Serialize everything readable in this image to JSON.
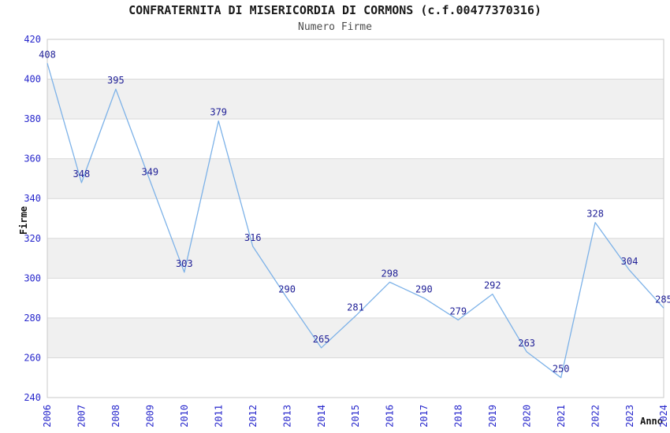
{
  "header": {
    "title": "CONFRATERNITA DI MISERICORDIA DI CORMONS (c.f.00477370316)",
    "subtitle": "Numero Firme"
  },
  "chart_data": {
    "type": "line",
    "title": "CONFRATERNITA DI MISERICORDIA DI CORMONS (c.f.00477370316)",
    "subtitle": "Numero Firme",
    "categories": [
      "2006",
      "2007",
      "2008",
      "2009",
      "2010",
      "2011",
      "2012",
      "2013",
      "2014",
      "2015",
      "2016",
      "2017",
      "2018",
      "2019",
      "2020",
      "2021",
      "2022",
      "2023",
      "2024"
    ],
    "values": [
      408,
      348,
      395,
      349,
      303,
      379,
      316,
      290,
      265,
      281,
      298,
      290,
      279,
      292,
      263,
      250,
      328,
      304,
      285
    ],
    "xlabel": "Anno",
    "ylabel": "Firme",
    "ylim": [
      240,
      420
    ],
    "y_tick_step": 20,
    "grid": true,
    "legend": "none",
    "band_pattern": "alternating-horizontal"
  },
  "colors": {
    "line": "#7db2e8",
    "tick_label": "#2727cc",
    "data_label": "#1e1e96",
    "band_gray": "#f0f0f0",
    "gridline": "#d9d9d9",
    "plot_border": "#c9c9c9",
    "background": "#ffffff"
  }
}
